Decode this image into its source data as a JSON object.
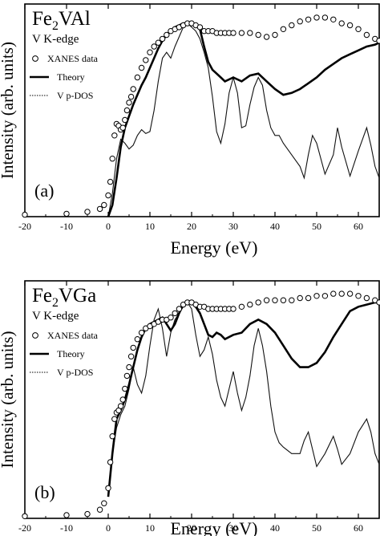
{
  "chart_data": [
    {
      "type": "line",
      "panel_label": "(a)",
      "compound": {
        "main": "Fe",
        "sub": "2",
        "tail": "VAl"
      },
      "edge": "V K-edge",
      "xlabel": "Energy (eV)",
      "ylabel": "Intensity (arb. units)",
      "xlim": [
        -20,
        65
      ],
      "ylim": [
        0,
        1.1
      ],
      "xticks": [
        "-20",
        "-10",
        "0",
        "10",
        "20",
        "30",
        "40",
        "50",
        "60"
      ],
      "legend": [
        "XANES data",
        "Theory",
        "V p-DOS"
      ],
      "legend_placement": "upper-left",
      "series": [
        {
          "name": "XANES data",
          "style": "open-circles",
          "x": [
            -20,
            -10,
            -5,
            -2,
            -1,
            0,
            0.5,
            1,
            1.5,
            2,
            2.5,
            3,
            3.5,
            4,
            4.5,
            5,
            5.5,
            6,
            7,
            8,
            9,
            10,
            11,
            12,
            13,
            14,
            15,
            16,
            17,
            18,
            19,
            20,
            21,
            22,
            23,
            24,
            25,
            26,
            27,
            28,
            29,
            30,
            32,
            34,
            36,
            38,
            40,
            42,
            44,
            46,
            48,
            50,
            52,
            54,
            56,
            58,
            60,
            62,
            64,
            65
          ],
          "values": [
            0.01,
            0.015,
            0.025,
            0.04,
            0.06,
            0.11,
            0.18,
            0.3,
            0.42,
            0.48,
            0.47,
            0.45,
            0.46,
            0.5,
            0.55,
            0.59,
            0.62,
            0.66,
            0.72,
            0.77,
            0.81,
            0.85,
            0.88,
            0.9,
            0.92,
            0.94,
            0.96,
            0.97,
            0.98,
            0.99,
            1.0,
            1.0,
            0.99,
            0.98,
            0.96,
            0.96,
            0.96,
            0.95,
            0.95,
            0.95,
            0.95,
            0.95,
            0.95,
            0.95,
            0.94,
            0.93,
            0.94,
            0.97,
            0.99,
            1.01,
            1.02,
            1.03,
            1.03,
            1.02,
            1.0,
            0.99,
            0.97,
            0.94,
            0.92,
            0.91
          ]
        },
        {
          "name": "Theory",
          "style": "thick-line",
          "x": [
            0,
            1,
            2,
            3,
            4,
            5,
            6,
            7,
            8,
            9,
            10,
            11,
            12,
            13,
            14,
            15,
            16,
            17,
            18,
            19,
            20,
            21,
            22,
            23,
            24,
            25,
            26,
            27,
            28,
            30,
            32,
            34,
            36,
            38,
            40,
            42,
            44,
            46,
            48,
            50,
            52,
            54,
            56,
            58,
            60,
            62,
            64,
            65
          ],
          "values": [
            0.0,
            0.06,
            0.2,
            0.36,
            0.46,
            0.52,
            0.58,
            0.63,
            0.68,
            0.72,
            0.77,
            0.82,
            0.87,
            0.91,
            0.94,
            0.96,
            0.98,
            0.99,
            1.0,
            1.0,
            1.0,
            0.99,
            0.97,
            0.88,
            0.8,
            0.76,
            0.74,
            0.72,
            0.7,
            0.72,
            0.7,
            0.73,
            0.74,
            0.7,
            0.66,
            0.63,
            0.64,
            0.66,
            0.69,
            0.72,
            0.76,
            0.79,
            0.82,
            0.84,
            0.86,
            0.88,
            0.89,
            0.9
          ]
        },
        {
          "name": "V p-DOS",
          "style": "thin-line",
          "x": [
            0,
            1,
            2,
            3,
            4,
            5,
            6,
            7,
            8,
            9,
            10,
            11,
            12,
            13,
            14,
            15,
            16,
            17,
            18,
            19,
            20,
            21,
            22,
            23,
            24,
            25,
            26,
            27,
            28,
            29,
            30,
            31,
            32,
            33,
            34,
            35,
            36,
            37,
            38,
            39,
            40,
            41,
            42,
            44,
            46,
            47,
            48,
            49,
            50,
            52,
            54,
            55,
            56,
            58,
            60,
            62,
            63,
            64,
            65
          ],
          "values": [
            0.0,
            0.12,
            0.3,
            0.4,
            0.38,
            0.35,
            0.37,
            0.42,
            0.45,
            0.43,
            0.44,
            0.55,
            0.7,
            0.82,
            0.85,
            0.82,
            0.88,
            0.93,
            0.98,
            1.0,
            0.98,
            0.96,
            0.92,
            0.85,
            0.77,
            0.62,
            0.44,
            0.38,
            0.48,
            0.64,
            0.72,
            0.64,
            0.46,
            0.47,
            0.58,
            0.67,
            0.72,
            0.68,
            0.55,
            0.46,
            0.42,
            0.42,
            0.38,
            0.32,
            0.26,
            0.2,
            0.32,
            0.42,
            0.38,
            0.22,
            0.32,
            0.46,
            0.36,
            0.21,
            0.34,
            0.46,
            0.37,
            0.26,
            0.2
          ]
        }
      ]
    },
    {
      "type": "line",
      "panel_label": "(b)",
      "compound": {
        "main": "Fe",
        "sub": "2",
        "tail": "VGa"
      },
      "edge": "V K-edge",
      "xlabel": "Energy (eV)",
      "ylabel": "Intensity (arb. units)",
      "xlim": [
        -20,
        65
      ],
      "ylim": [
        0,
        1.1
      ],
      "xticks": [
        "-20",
        "-10",
        "0",
        "10",
        "20",
        "30",
        "40",
        "50",
        "60"
      ],
      "legend": [
        "XANES data",
        "Theory",
        "V p-DOS"
      ],
      "legend_placement": "upper-left",
      "series": [
        {
          "name": "XANES data",
          "style": "open-circles",
          "x": [
            -20,
            -10,
            -5,
            -2,
            -1,
            0,
            0.5,
            1,
            1.5,
            2,
            2.5,
            3,
            3.5,
            4,
            4.5,
            5,
            5.5,
            6,
            7,
            8,
            9,
            10,
            11,
            12,
            13,
            14,
            15,
            16,
            17,
            18,
            19,
            20,
            21,
            22,
            23,
            24,
            25,
            26,
            27,
            28,
            29,
            30,
            32,
            34,
            36,
            38,
            40,
            42,
            44,
            46,
            48,
            50,
            52,
            54,
            56,
            58,
            60,
            62,
            64,
            65
          ],
          "values": [
            0.01,
            0.015,
            0.02,
            0.04,
            0.07,
            0.14,
            0.26,
            0.38,
            0.46,
            0.49,
            0.5,
            0.52,
            0.55,
            0.6,
            0.66,
            0.7,
            0.75,
            0.79,
            0.83,
            0.86,
            0.88,
            0.89,
            0.9,
            0.91,
            0.92,
            0.92,
            0.93,
            0.95,
            0.97,
            0.99,
            1.0,
            1.0,
            0.99,
            0.98,
            0.98,
            0.97,
            0.97,
            0.97,
            0.97,
            0.97,
            0.97,
            0.97,
            0.98,
            0.99,
            1.0,
            1.01,
            1.01,
            1.01,
            1.01,
            1.02,
            1.02,
            1.03,
            1.03,
            1.04,
            1.04,
            1.04,
            1.03,
            1.02,
            1.01,
            1.0
          ]
        },
        {
          "name": "Theory",
          "style": "thick-line",
          "x": [
            0,
            1,
            2,
            3,
            4,
            5,
            6,
            7,
            8,
            9,
            10,
            11,
            12,
            13,
            14,
            15,
            16,
            17,
            18,
            19,
            20,
            21,
            22,
            23,
            24,
            25,
            26,
            27,
            28,
            30,
            32,
            34,
            36,
            38,
            40,
            42,
            44,
            46,
            48,
            50,
            52,
            54,
            56,
            58,
            60,
            62,
            64,
            65
          ],
          "values": [
            0.1,
            0.3,
            0.46,
            0.5,
            0.55,
            0.62,
            0.7,
            0.78,
            0.84,
            0.88,
            0.9,
            0.91,
            0.92,
            0.93,
            0.9,
            0.87,
            0.9,
            0.95,
            0.99,
            1.0,
            1.0,
            0.98,
            0.95,
            0.9,
            0.85,
            0.84,
            0.86,
            0.85,
            0.83,
            0.85,
            0.86,
            0.9,
            0.92,
            0.9,
            0.86,
            0.8,
            0.74,
            0.7,
            0.7,
            0.72,
            0.77,
            0.84,
            0.9,
            0.96,
            0.98,
            0.99,
            1.0,
            1.0
          ]
        },
        {
          "name": "V p-DOS",
          "style": "thin-line",
          "x": [
            0,
            1,
            2,
            3,
            4,
            5,
            6,
            7,
            8,
            9,
            10,
            11,
            12,
            13,
            14,
            15,
            16,
            17,
            18,
            19,
            20,
            21,
            22,
            23,
            24,
            25,
            26,
            27,
            28,
            29,
            30,
            31,
            32,
            33,
            34,
            35,
            36,
            37,
            38,
            39,
            40,
            41,
            42,
            44,
            46,
            47,
            48,
            49,
            50,
            52,
            54,
            55,
            56,
            58,
            60,
            62,
            63,
            64,
            65
          ],
          "values": [
            0.12,
            0.3,
            0.42,
            0.48,
            0.52,
            0.6,
            0.7,
            0.62,
            0.58,
            0.66,
            0.8,
            0.92,
            0.97,
            0.88,
            0.75,
            0.86,
            0.92,
            0.95,
            0.98,
            1.0,
            0.97,
            0.85,
            0.75,
            0.78,
            0.84,
            0.76,
            0.64,
            0.56,
            0.52,
            0.6,
            0.68,
            0.58,
            0.5,
            0.56,
            0.66,
            0.8,
            0.88,
            0.8,
            0.68,
            0.52,
            0.4,
            0.35,
            0.33,
            0.3,
            0.3,
            0.36,
            0.4,
            0.32,
            0.24,
            0.3,
            0.38,
            0.32,
            0.25,
            0.3,
            0.4,
            0.46,
            0.4,
            0.3,
            0.25
          ]
        }
      ]
    }
  ]
}
